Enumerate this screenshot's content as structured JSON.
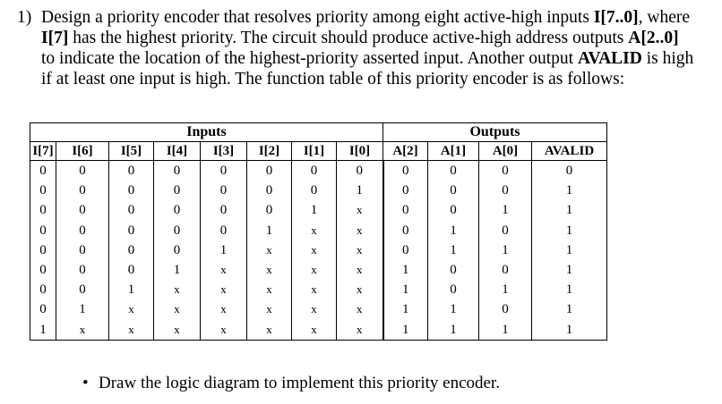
{
  "problem": {
    "number": "1)",
    "parts": [
      {
        "text": "Design a priority encoder that resolves priority among eight active-high inputs ",
        "bold": false
      },
      {
        "text": "I[7..0]",
        "bold": true
      },
      {
        "text": ", where ",
        "bold": false
      },
      {
        "text": "I[7]",
        "bold": true
      },
      {
        "text": " has the highest priority. The circuit should produce active-high address outputs ",
        "bold": false
      },
      {
        "text": "A[2..0]",
        "bold": true
      },
      {
        "text": " to indicate the location of the highest-priority asserted input. Another output ",
        "bold": false
      },
      {
        "text": "AVALID",
        "bold": true
      },
      {
        "text": " is high if at least one input is high. The function table of this priority encoder is as follows:",
        "bold": false
      }
    ]
  },
  "table": {
    "group_inputs": "Inputs",
    "group_outputs": "Outputs",
    "columns": [
      "I[7]",
      "I[6]",
      "I[5]",
      "I[4]",
      "I[3]",
      "I[2]",
      "I[1]",
      "I[0]",
      "A[2]",
      "A[1]",
      "A[0]",
      "AVALID"
    ],
    "rows": [
      [
        "0",
        "0",
        "0",
        "0",
        "0",
        "0",
        "0",
        "0",
        "0",
        "0",
        "0",
        "0"
      ],
      [
        "0",
        "0",
        "0",
        "0",
        "0",
        "0",
        "0",
        "1",
        "0",
        "0",
        "0",
        "1"
      ],
      [
        "0",
        "0",
        "0",
        "0",
        "0",
        "0",
        "1",
        "x",
        "0",
        "0",
        "1",
        "1"
      ],
      [
        "0",
        "0",
        "0",
        "0",
        "0",
        "1",
        "x",
        "x",
        "0",
        "1",
        "0",
        "1"
      ],
      [
        "0",
        "0",
        "0",
        "0",
        "1",
        "x",
        "x",
        "x",
        "0",
        "1",
        "1",
        "1"
      ],
      [
        "0",
        "0",
        "0",
        "1",
        "x",
        "x",
        "x",
        "x",
        "1",
        "0",
        "0",
        "1"
      ],
      [
        "0",
        "0",
        "1",
        "x",
        "x",
        "x",
        "x",
        "x",
        "1",
        "0",
        "1",
        "1"
      ],
      [
        "0",
        "1",
        "x",
        "x",
        "x",
        "x",
        "x",
        "x",
        "1",
        "1",
        "0",
        "1"
      ],
      [
        "1",
        "x",
        "x",
        "x",
        "x",
        "x",
        "x",
        "x",
        "1",
        "1",
        "1",
        "1"
      ]
    ]
  },
  "bullet": {
    "symbol": "•",
    "text": "Draw the logic diagram to implement this priority encoder."
  }
}
